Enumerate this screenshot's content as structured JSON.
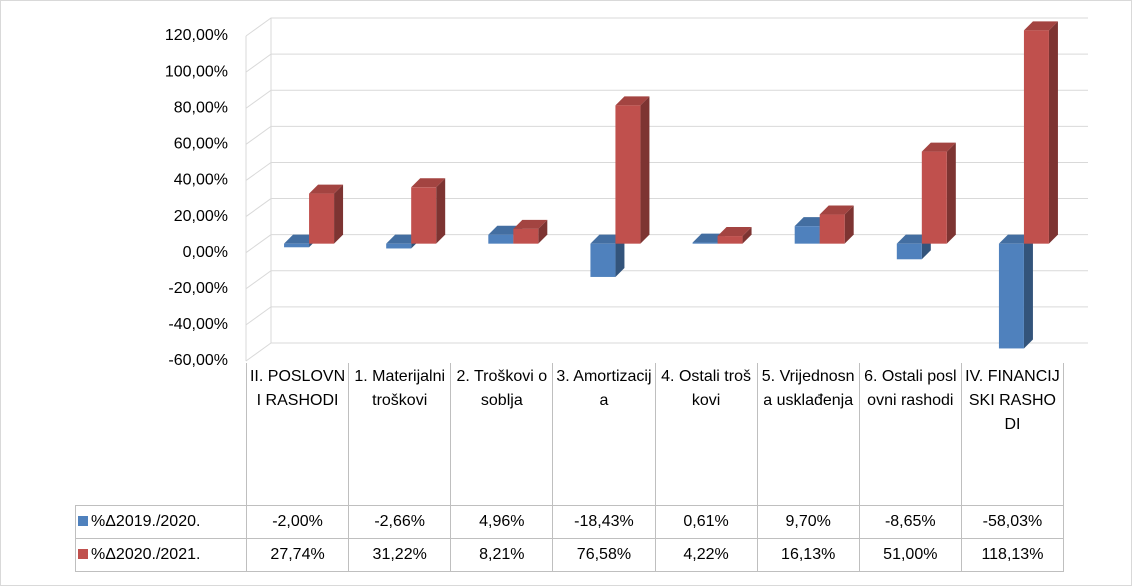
{
  "chart_data": {
    "type": "bar3d",
    "categories": [
      "II. POSLOVNI RASHODI",
      "1. Materijalni troškovi",
      "2. Troškovi osoblja",
      "3. Amortizacija",
      "4. Ostali troškovi",
      "5. Vrijednosna usklađenja",
      "6. Ostali poslovni rashodi",
      "IV. FINANCIJSKI RASHODI"
    ],
    "series": [
      {
        "name": "%Δ2019./2020.",
        "color": "#4f81bd",
        "values": [
          -2.0,
          -2.66,
          4.96,
          -18.43,
          0.61,
          9.7,
          -8.65,
          -58.03
        ],
        "value_labels": [
          "-2,00%",
          "-2,66%",
          "4,96%",
          "-18,43%",
          "0,61%",
          "9,70%",
          "-8,65%",
          "-58,03%"
        ]
      },
      {
        "name": "%Δ2020./2021.",
        "color": "#c0504d",
        "values": [
          27.74,
          31.22,
          8.21,
          76.58,
          4.22,
          16.13,
          51.0,
          118.13
        ],
        "value_labels": [
          "27,74%",
          "31,22%",
          "8,21%",
          "76,58%",
          "4,22%",
          "16,13%",
          "51,00%",
          "118,13%"
        ]
      }
    ],
    "ylim": [
      -60,
      120
    ],
    "yticks": [
      {
        "value": -60,
        "label": "-60,00%"
      },
      {
        "value": -40,
        "label": "-40,00%"
      },
      {
        "value": -20,
        "label": "-20,00%"
      },
      {
        "value": 0,
        "label": "0,00%"
      },
      {
        "value": 20,
        "label": "20,00%"
      },
      {
        "value": 40,
        "label": "40,00%"
      },
      {
        "value": 60,
        "label": "60,00%"
      },
      {
        "value": 80,
        "label": "80,00%"
      },
      {
        "value": 100,
        "label": "100,00%"
      },
      {
        "value": 120,
        "label": "120,00%"
      }
    ],
    "grid": true
  }
}
